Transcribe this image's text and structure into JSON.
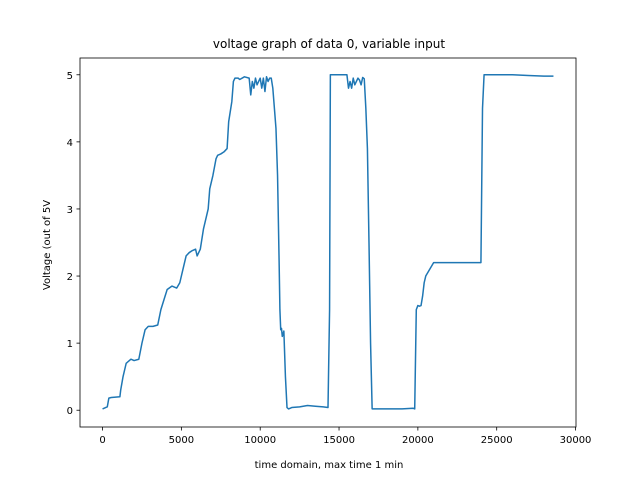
{
  "chart_data": {
    "type": "line",
    "title": "voltage graph of data 0, variable input",
    "xlabel": "time domain, max time 1 min",
    "ylabel": "Voltage (out of 5V",
    "xlim": [
      -1430,
      30030
    ],
    "ylim": [
      -0.25,
      5.25
    ],
    "xticks": [
      0,
      5000,
      10000,
      15000,
      20000,
      25000,
      30000
    ],
    "xtick_labels": [
      "0",
      "5000",
      "10000",
      "15000",
      "20000",
      "25000",
      "30000"
    ],
    "yticks": [
      0,
      1,
      2,
      3,
      4,
      5
    ],
    "ytick_labels": [
      "0",
      "1",
      "2",
      "3",
      "4",
      "5"
    ],
    "grid": false,
    "series": [
      {
        "color": "#1f77b4",
        "x": [
          0,
          300,
          400,
          550,
          1100,
          1150,
          1300,
          1500,
          1700,
          1800,
          2000,
          2300,
          2500,
          2700,
          2900,
          3200,
          3500,
          3700,
          3900,
          4100,
          4400,
          4700,
          4900,
          5100,
          5300,
          5500,
          5700,
          5900,
          6000,
          6200,
          6400,
          6600,
          6700,
          6800,
          7000,
          7200,
          7300,
          7500,
          7700,
          7900,
          8000,
          8200,
          8300,
          8400,
          8600,
          8700,
          9000,
          9300,
          9400,
          9500,
          9600,
          9700,
          9800,
          9900,
          10000,
          10100,
          10200,
          10300,
          10400,
          10500,
          10600,
          10700,
          10800,
          10900,
          11000,
          11100,
          11200,
          11250,
          11300,
          11350,
          11400,
          11500,
          11600,
          11700,
          11800,
          12000,
          12500,
          13000,
          13500,
          14000,
          14300,
          14400,
          14450,
          15000,
          15500,
          15600,
          15700,
          15800,
          15900,
          16000,
          16100,
          16200,
          16300,
          16400,
          16500,
          16600,
          16700,
          16800,
          16900,
          17000,
          17100,
          17200,
          17300,
          17500,
          18000,
          19000,
          19700,
          19800,
          19900,
          20000,
          20100,
          20200,
          20300,
          20400,
          20500,
          21000,
          22000,
          23000,
          23900,
          24000,
          24100,
          24200,
          25000,
          26000,
          27000,
          28000,
          28600
        ],
        "y": [
          0.02,
          0.05,
          0.18,
          0.19,
          0.2,
          0.3,
          0.5,
          0.7,
          0.74,
          0.76,
          0.74,
          0.76,
          1.0,
          1.2,
          1.25,
          1.25,
          1.27,
          1.5,
          1.65,
          1.8,
          1.85,
          1.82,
          1.9,
          2.1,
          2.3,
          2.35,
          2.38,
          2.4,
          2.3,
          2.4,
          2.7,
          2.9,
          3.0,
          3.3,
          3.5,
          3.75,
          3.8,
          3.82,
          3.85,
          3.9,
          4.3,
          4.6,
          4.9,
          4.95,
          4.95,
          4.93,
          4.97,
          4.95,
          4.7,
          4.9,
          4.8,
          4.95,
          4.85,
          4.9,
          4.95,
          4.8,
          4.95,
          4.75,
          4.97,
          4.9,
          4.95,
          4.95,
          4.8,
          4.5,
          4.2,
          3.5,
          2.2,
          1.5,
          1.2,
          1.22,
          1.1,
          1.18,
          0.5,
          0.04,
          0.02,
          0.04,
          0.05,
          0.07,
          0.06,
          0.05,
          0.04,
          1.5,
          5.0,
          5.0,
          5.0,
          4.8,
          4.9,
          4.8,
          4.95,
          4.85,
          4.9,
          4.95,
          4.92,
          4.85,
          4.96,
          4.94,
          4.5,
          3.9,
          2.5,
          1.0,
          0.02,
          0.02,
          0.02,
          0.02,
          0.02,
          0.02,
          0.03,
          0.02,
          1.5,
          1.56,
          1.55,
          1.56,
          1.7,
          1.9,
          2.0,
          2.2,
          2.2,
          2.2,
          2.2,
          2.2,
          4.5,
          5.0,
          5.0,
          5.0,
          4.99,
          4.98,
          4.98
        ]
      }
    ]
  }
}
